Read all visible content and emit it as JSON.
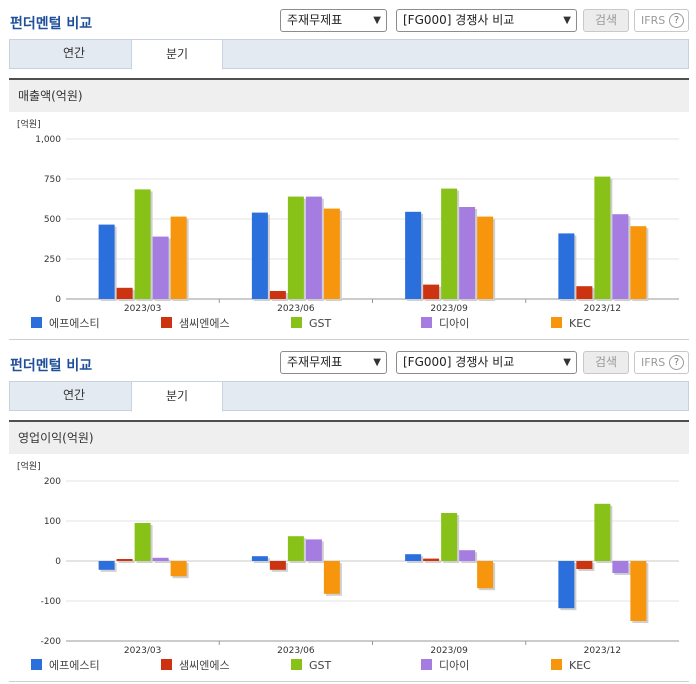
{
  "sections": [
    {
      "title": "펀더멘털 비교",
      "select1": "주재무제표",
      "select2": "[FG000] 경쟁사 비교",
      "search_label": "검색",
      "ifrs_label": "IFRS",
      "help_glyph": "?",
      "tabs": [
        "연간",
        "분기"
      ],
      "active_tab": "분기",
      "panel_title": "매출액(억원)"
    },
    {
      "title": "펀더멘털 비교",
      "select1": "주재무제표",
      "select2": "[FG000] 경쟁사 비교",
      "search_label": "검색",
      "ifrs_label": "IFRS",
      "help_glyph": "?",
      "tabs": [
        "연간",
        "분기"
      ],
      "active_tab": "분기",
      "panel_title": "영업이익(억원)"
    }
  ],
  "chart_data": [
    {
      "type": "bar",
      "unit_label": "[억원]",
      "categories": [
        "2023/03",
        "2023/06",
        "2023/09",
        "2023/12"
      ],
      "ylim": [
        0,
        1000
      ],
      "yticks": [
        0,
        250,
        500,
        750,
        1000
      ],
      "ytick_labels": [
        "0",
        "250",
        "500",
        "750",
        "1,000"
      ],
      "series": [
        {
          "name": "에프에스티",
          "color": "#2b6fdc",
          "values": [
            465,
            540,
            545,
            410
          ]
        },
        {
          "name": "샘씨엔에스",
          "color": "#cc3311",
          "values": [
            70,
            50,
            90,
            80
          ]
        },
        {
          "name": "GST",
          "color": "#88c218",
          "values": [
            685,
            640,
            690,
            765
          ]
        },
        {
          "name": "디아이",
          "color": "#a57de0",
          "values": [
            390,
            640,
            575,
            530
          ]
        },
        {
          "name": "KEC",
          "color": "#f7960c",
          "values": [
            515,
            565,
            515,
            455
          ]
        }
      ]
    },
    {
      "type": "bar",
      "unit_label": "[억원]",
      "categories": [
        "2023/03",
        "2023/06",
        "2023/09",
        "2023/12"
      ],
      "ylim": [
        -200,
        200
      ],
      "yticks": [
        -200,
        -100,
        0,
        100,
        200
      ],
      "ytick_labels": [
        "-200",
        "-100",
        "0",
        "100",
        "200"
      ],
      "series": [
        {
          "name": "에프에스티",
          "color": "#2b6fdc",
          "values": [
            -22,
            12,
            17,
            -118
          ]
        },
        {
          "name": "샘씨엔에스",
          "color": "#cc3311",
          "values": [
            5,
            -22,
            6,
            -20
          ]
        },
        {
          "name": "GST",
          "color": "#88c218",
          "values": [
            95,
            62,
            120,
            143
          ]
        },
        {
          "name": "디아이",
          "color": "#a57de0",
          "values": [
            8,
            54,
            27,
            -30
          ]
        },
        {
          "name": "KEC",
          "color": "#f7960c",
          "values": [
            -38,
            -82,
            -68,
            -150
          ]
        }
      ]
    }
  ]
}
